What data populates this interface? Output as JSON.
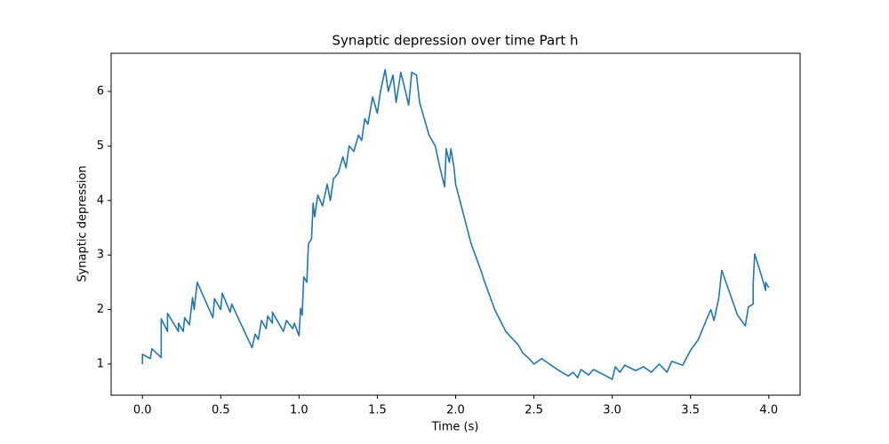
{
  "chart_data": {
    "type": "line",
    "title": "Synaptic depression over time Part h",
    "xlabel": "Time (s)",
    "ylabel": "Synaptic depression",
    "xlim": [
      -0.2,
      4.2
    ],
    "ylim": [
      0.43,
      6.7
    ],
    "xticks": [
      {
        "value": 0,
        "label": "0.0"
      },
      0.5,
      {
        "value": 1,
        "label": "1.0"
      },
      1.5,
      {
        "value": 2,
        "label": "2.0"
      },
      2.5,
      {
        "value": 3,
        "label": "3.0"
      },
      3.5,
      {
        "value": 4,
        "label": "4.0"
      }
    ],
    "yticks": [
      1,
      2,
      3,
      4,
      5,
      6
    ],
    "series": [
      {
        "color": "#1f77b4",
        "x": [
          0.0,
          0.0,
          0.05,
          0.06,
          0.12,
          0.12,
          0.16,
          0.16,
          0.23,
          0.23,
          0.26,
          0.27,
          0.3,
          0.32,
          0.33,
          0.35,
          0.45,
          0.46,
          0.5,
          0.51,
          0.56,
          0.57,
          0.7,
          0.72,
          0.74,
          0.76,
          0.79,
          0.8,
          0.83,
          0.83,
          0.9,
          0.92,
          0.96,
          0.97,
          1.0,
          1.01,
          1.02,
          1.03,
          1.05,
          1.06,
          1.08,
          1.09,
          1.1,
          1.12,
          1.15,
          1.18,
          1.2,
          1.22,
          1.25,
          1.28,
          1.3,
          1.32,
          1.35,
          1.38,
          1.4,
          1.42,
          1.44,
          1.47,
          1.5,
          1.52,
          1.55,
          1.57,
          1.6,
          1.62,
          1.65,
          1.68,
          1.7,
          1.72,
          1.75,
          1.77,
          1.8,
          1.83,
          1.87,
          1.9,
          1.93,
          1.94,
          1.96,
          1.97,
          1.99,
          2.0,
          2.1,
          2.17,
          2.18,
          2.25,
          2.32,
          2.4,
          2.43,
          2.45,
          2.47,
          2.5,
          2.55,
          2.65,
          2.72,
          2.75,
          2.78,
          2.8,
          2.85,
          2.88,
          2.95,
          3.0,
          3.02,
          3.05,
          3.08,
          3.15,
          3.2,
          3.25,
          3.3,
          3.35,
          3.38,
          3.45,
          3.5,
          3.55,
          3.6,
          3.63,
          3.65,
          3.68,
          3.7,
          3.8,
          3.85,
          3.87,
          3.9,
          3.9,
          3.91,
          3.95,
          3.98,
          3.98,
          4.0
        ],
        "values": [
          1.0,
          1.18,
          1.1,
          1.28,
          1.12,
          1.83,
          1.6,
          1.93,
          1.6,
          1.75,
          1.6,
          1.85,
          1.72,
          2.22,
          2.0,
          2.5,
          1.85,
          2.2,
          2.0,
          2.3,
          1.95,
          2.1,
          1.3,
          1.55,
          1.45,
          1.8,
          1.65,
          1.88,
          1.75,
          1.95,
          1.6,
          1.8,
          1.65,
          1.75,
          1.52,
          2.02,
          1.9,
          2.6,
          2.5,
          3.2,
          3.3,
          3.95,
          3.7,
          4.1,
          3.9,
          4.3,
          4.0,
          4.4,
          4.5,
          4.8,
          4.6,
          5.0,
          4.9,
          5.2,
          5.1,
          5.5,
          5.4,
          5.9,
          5.6,
          6.0,
          6.4,
          6.0,
          6.3,
          5.8,
          6.35,
          6.0,
          5.75,
          6.35,
          6.3,
          5.8,
          5.5,
          5.2,
          5.0,
          4.6,
          4.25,
          4.95,
          4.7,
          4.95,
          4.6,
          4.3,
          3.2,
          2.65,
          2.55,
          2.0,
          1.6,
          1.35,
          1.2,
          1.15,
          1.1,
          1.0,
          1.1,
          0.9,
          0.78,
          0.85,
          0.75,
          0.9,
          0.8,
          0.9,
          0.8,
          0.72,
          0.95,
          0.85,
          0.98,
          0.88,
          0.95,
          0.85,
          1.0,
          0.85,
          1.05,
          0.98,
          1.25,
          1.45,
          1.8,
          2.0,
          1.8,
          2.2,
          2.72,
          1.9,
          1.7,
          2.05,
          2.1,
          2.45,
          3.02,
          2.65,
          2.35,
          2.5,
          2.4
        ]
      }
    ]
  }
}
